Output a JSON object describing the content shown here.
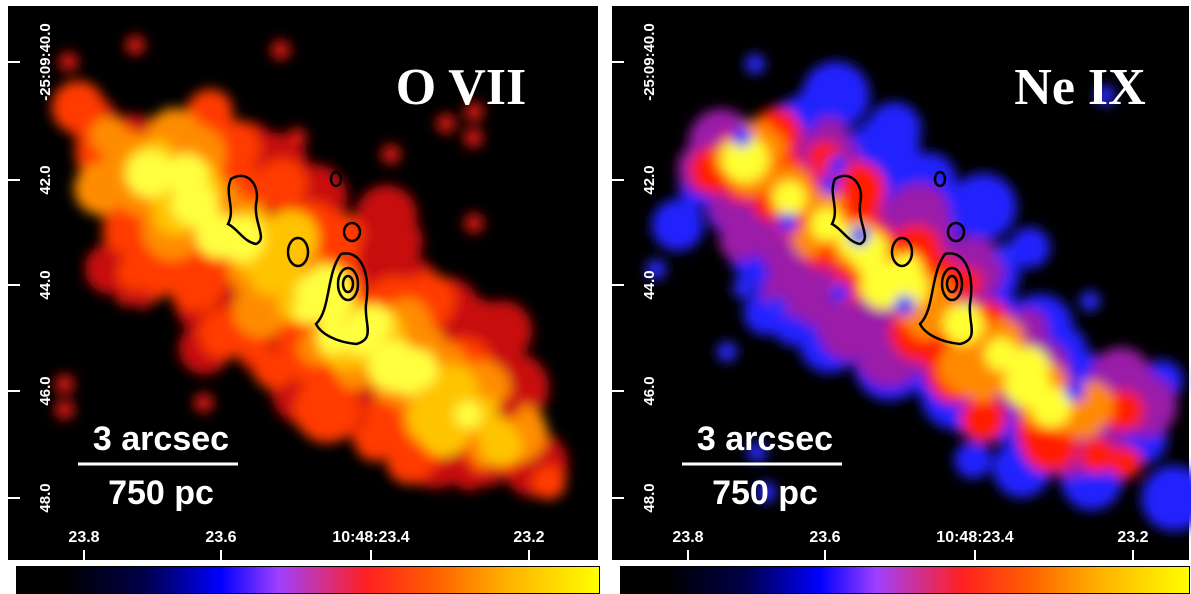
{
  "panels": [
    {
      "title": "O VII",
      "scale_bar": {
        "angular": "3 arcsec",
        "physical": "750 pc"
      },
      "y_tick_labels": [
        "-25:09:40.0",
        "42.0",
        "44.0",
        "46.0",
        "48.0"
      ],
      "x_tick_labels": [
        "23.8",
        "23.6",
        "10:48:23.4",
        "23.2"
      ]
    },
    {
      "title": "Ne IX",
      "scale_bar": {
        "angular": "3 arcsec",
        "physical": "750 pc"
      },
      "y_tick_labels": [
        "-25:09:40.0",
        "42.0",
        "44.0",
        "46.0",
        "48.0"
      ],
      "x_tick_labels": [
        "23.8",
        "23.6",
        "10:48:23.4",
        "23.2"
      ]
    }
  ]
}
